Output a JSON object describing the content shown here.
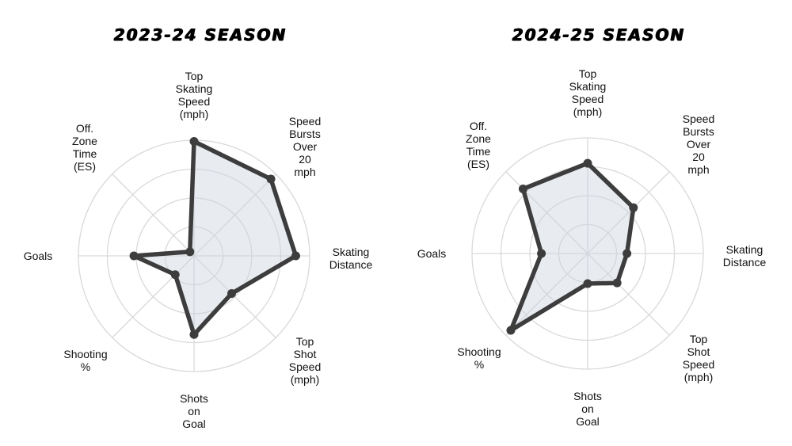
{
  "page": {
    "background": "#ffffff",
    "description": "Side-by-side radar (spider) charts comparing a hockey player's season metrics"
  },
  "colors": {
    "polygon_stroke": "#3d3d3d",
    "polygon_fill": "rgba(203,213,225,0.45)",
    "marker": "#3d3d3d",
    "grid": "#d9d9d9",
    "text": "#111111",
    "title": "#000000"
  },
  "chart_data": [
    {
      "type": "radar",
      "title": "2023-24 SEASON",
      "axes": [
        "Top Skating Speed (mph)",
        "Speed Bursts Over 20 mph",
        "Skating Distance",
        "Top Shot Speed (mph)",
        "Shots on Goal",
        "Shooting %",
        "Goals",
        "Off. Zone Time (ES)"
      ],
      "axes_lines": [
        [
          "Top",
          "Skating",
          "Speed",
          "(mph)"
        ],
        [
          "Speed",
          "Bursts",
          "Over",
          "20",
          "mph"
        ],
        [
          "Skating",
          "Distance"
        ],
        [
          "Top",
          "Shot",
          "Speed",
          "(mph)"
        ],
        [
          "Shots",
          "on",
          "Goal"
        ],
        [
          "Shooting",
          "%"
        ],
        [
          "Goals"
        ],
        [
          "Off.",
          "Zone",
          "Time",
          "(ES)"
        ]
      ],
      "values": [
        0.99,
        0.94,
        0.88,
        0.46,
        0.68,
        0.23,
        0.52,
        0.05
      ],
      "scale_min": 0,
      "scale_max": 1,
      "rings": [
        0.25,
        0.5,
        0.75,
        1.0
      ],
      "grid": "on",
      "legend": "none"
    },
    {
      "type": "radar",
      "title": "2024-25 SEASON",
      "axes": [
        "Top Skating Speed (mph)",
        "Speed Bursts Over 20 mph",
        "Skating Distance",
        "Top Shot Speed (mph)",
        "Shots on Goal",
        "Shooting %",
        "Goals",
        "Off. Zone Time (ES)"
      ],
      "axes_lines": [
        [
          "Top",
          "Skating",
          "Speed",
          "(mph)"
        ],
        [
          "Speed",
          "Bursts",
          "Over",
          "20",
          "mph"
        ],
        [
          "Skating",
          "Distance"
        ],
        [
          "Top",
          "Shot",
          "Speed",
          "(mph)"
        ],
        [
          "Shots",
          "on",
          "Goal"
        ],
        [
          "Shooting",
          "%"
        ],
        [
          "Goals"
        ],
        [
          "Off.",
          "Zone",
          "Time",
          "(ES)"
        ]
      ],
      "values": [
        0.78,
        0.56,
        0.34,
        0.36,
        0.26,
        0.94,
        0.4,
        0.79
      ],
      "scale_min": 0,
      "scale_max": 1,
      "rings": [
        0.25,
        0.5,
        0.75,
        1.0
      ],
      "grid": "on",
      "legend": "none"
    }
  ]
}
